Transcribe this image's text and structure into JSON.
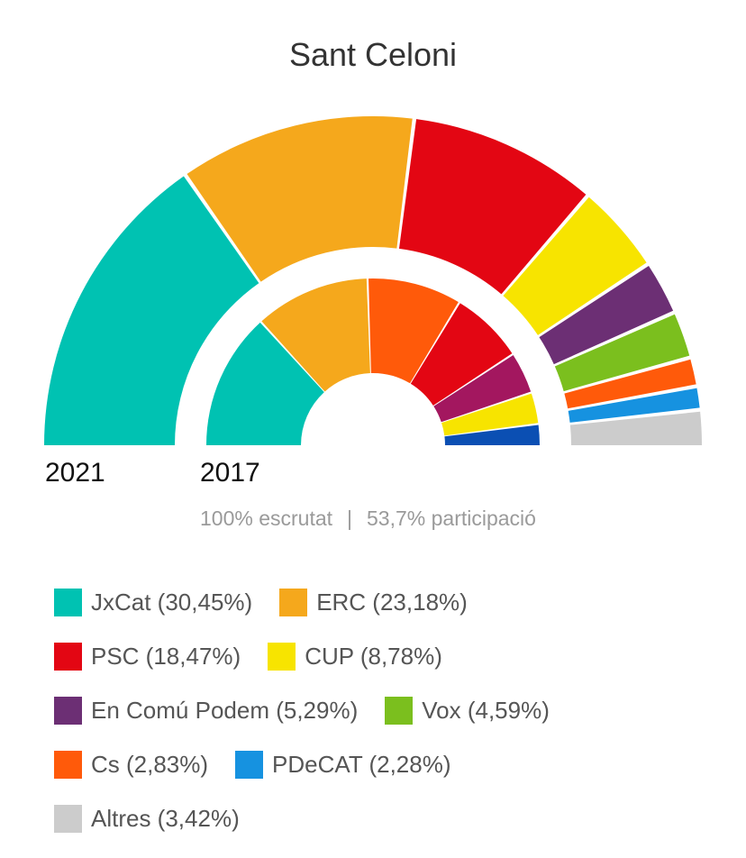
{
  "title": "Sant Celoni",
  "status": {
    "scrutinized": "100% escrutat",
    "separator": "|",
    "participation": "53,7% participació"
  },
  "chart_data": {
    "type": "pie",
    "subtype": "semicircle-parliament",
    "rings": [
      {
        "label": "2021",
        "ring": "outer",
        "slices": [
          {
            "name": "JxCat",
            "value": 30.45,
            "color": "#00c2b2"
          },
          {
            "name": "ERC",
            "value": 23.18,
            "color": "#f5a81c"
          },
          {
            "name": "PSC",
            "value": 18.47,
            "color": "#e30613"
          },
          {
            "name": "CUP",
            "value": 8.78,
            "color": "#f7e400"
          },
          {
            "name": "En Comú Podem",
            "value": 5.29,
            "color": "#6c2f74"
          },
          {
            "name": "Vox",
            "value": 4.59,
            "color": "#7bbf1e"
          },
          {
            "name": "Cs",
            "value": 2.83,
            "color": "#ff5a0a"
          },
          {
            "name": "PDeCAT",
            "value": 2.28,
            "color": "#1692e0"
          },
          {
            "name": "Altres",
            "value": 3.42,
            "color": "#cccccc"
          }
        ]
      },
      {
        "label": "2017",
        "ring": "inner",
        "slices": [
          {
            "value": 24.1,
            "color": "#00c2b2"
          },
          {
            "value": 20.4,
            "color": "#f5a81c"
          },
          {
            "value": 16.7,
            "color": "#ff5a0a"
          },
          {
            "value": 13.0,
            "color": "#e30613"
          },
          {
            "value": 7.4,
            "color": "#a3175f"
          },
          {
            "value": 5.6,
            "color": "#f7e400"
          },
          {
            "value": 3.7,
            "color": "#0b4fb3"
          }
        ]
      }
    ]
  },
  "legend": [
    [
      {
        "label": "JxCat (30,45%)",
        "color": "#00c2b2"
      },
      {
        "label": "ERC (23,18%)",
        "color": "#f5a81c"
      }
    ],
    [
      {
        "label": "PSC (18,47%)",
        "color": "#e30613"
      },
      {
        "label": "CUP (8,78%)",
        "color": "#f7e400"
      }
    ],
    [
      {
        "label": "En Comú Podem (5,29%)",
        "color": "#6c2f74"
      },
      {
        "label": "Vox (4,59%)",
        "color": "#7bbf1e"
      }
    ],
    [
      {
        "label": "Cs (2,83%)",
        "color": "#ff5a0a"
      },
      {
        "label": "PDeCAT (2,28%)",
        "color": "#1692e0"
      }
    ],
    [
      {
        "label": "Altres (3,42%)",
        "color": "#cccccc"
      }
    ]
  ]
}
